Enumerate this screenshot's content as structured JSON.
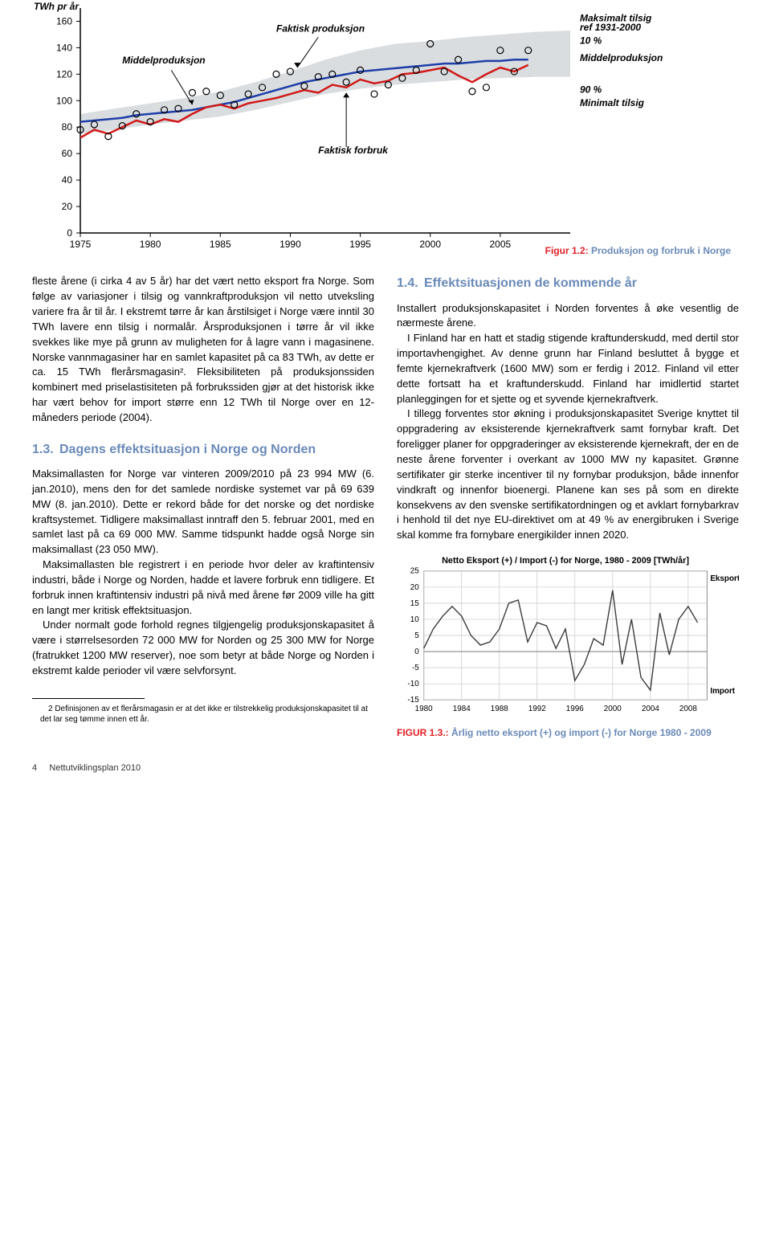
{
  "chart_top": {
    "type": "line",
    "y_axis_title": "TWh pr år",
    "x_ticks": [
      1975,
      1980,
      1985,
      1990,
      1995,
      2000,
      2005
    ],
    "y_ticks": [
      0,
      20,
      40,
      60,
      80,
      100,
      120,
      140,
      160
    ],
    "xlim": [
      1975,
      2010
    ],
    "ylim": [
      0,
      170
    ],
    "background_color": "#ffffff",
    "grid_color": "#000000",
    "band_color": "#d9dde0",
    "band_upper": [
      90,
      94,
      98,
      102,
      107,
      114,
      122,
      131,
      138,
      143,
      145,
      148,
      150,
      152,
      153
    ],
    "band_lower": [
      75,
      78,
      82,
      85,
      88,
      93,
      99,
      105,
      109,
      112,
      114,
      116,
      117,
      118,
      118
    ],
    "band_years": [
      1975,
      1977.5,
      1980,
      1982.5,
      1985,
      1987.5,
      1990,
      1992.5,
      1995,
      1997.5,
      2000,
      2002.5,
      2005,
      2007.5,
      2010
    ],
    "series": [
      {
        "name": "Middelproduksjon",
        "color": "#1f3ea8",
        "width": 2.5,
        "years": [
          1975,
          1976,
          1977,
          1978,
          1979,
          1980,
          1981,
          1982,
          1983,
          1984,
          1985,
          1986,
          1987,
          1988,
          1989,
          1990,
          1991,
          1992,
          1993,
          1994,
          1995,
          1996,
          1997,
          1998,
          1999,
          2000,
          2001,
          2002,
          2003,
          2004,
          2005,
          2006,
          2007
        ],
        "values": [
          84,
          85,
          86,
          87,
          89,
          90,
          91,
          92,
          93,
          95,
          97,
          99,
          102,
          105,
          108,
          111,
          114,
          116,
          118,
          120,
          122,
          123,
          124,
          125,
          126,
          127,
          128,
          128,
          129,
          130,
          130,
          131,
          131
        ]
      },
      {
        "name": "Faktisk forbruk",
        "color": "#d11a1a",
        "width": 2.5,
        "years": [
          1975,
          1976,
          1977,
          1978,
          1979,
          1980,
          1981,
          1982,
          1983,
          1984,
          1985,
          1986,
          1987,
          1988,
          1989,
          1990,
          1991,
          1992,
          1993,
          1994,
          1995,
          1996,
          1997,
          1998,
          1999,
          2000,
          2001,
          2002,
          2003,
          2004,
          2005,
          2006,
          2007
        ],
        "values": [
          72,
          78,
          75,
          80,
          85,
          82,
          86,
          84,
          90,
          95,
          97,
          94,
          98,
          100,
          102,
          105,
          108,
          106,
          112,
          110,
          116,
          113,
          115,
          120,
          121,
          123,
          125,
          119,
          114,
          120,
          125,
          122,
          127
        ]
      },
      {
        "name": "Faktisk produksjon",
        "color": "#000000",
        "width": 0,
        "marker": "circle",
        "marker_size": 4,
        "years": [
          1975,
          1976,
          1977,
          1978,
          1979,
          1980,
          1981,
          1982,
          1983,
          1984,
          1985,
          1986,
          1987,
          1988,
          1989,
          1990,
          1991,
          1992,
          1993,
          1994,
          1995,
          1996,
          1997,
          1998,
          1999,
          2000,
          2001,
          2002,
          2003,
          2004,
          2005,
          2006,
          2007
        ],
        "values": [
          78,
          82,
          73,
          81,
          90,
          84,
          93,
          94,
          106,
          107,
          104,
          97,
          105,
          110,
          120,
          122,
          111,
          118,
          120,
          114,
          123,
          105,
          112,
          117,
          123,
          143,
          122,
          131,
          107,
          110,
          138,
          122,
          138
        ]
      }
    ],
    "annotations": {
      "middelproduksjon_left": "Middelproduksjon",
      "faktisk_produksjon": "Faktisk produksjon",
      "faktisk_forbruk": "Faktisk forbruk",
      "maksimalt_tilsig": "Maksimalt tilsig",
      "ref_period": "ref 1931-2000",
      "pct10": "10 %",
      "middelproduksjon_right": "Middelproduksjon",
      "pct90": "90 %",
      "minimalt_tilsig": "Minimalt tilsig"
    }
  },
  "caption_top": {
    "fig_label": "Figur 1.2:",
    "text": "Produksjon og forbruk i Norge"
  },
  "col_left": {
    "p1": "fleste årene (i cirka 4 av 5 år) har det vært netto eksport fra Norge. Som følge av variasjoner i tilsig og vannkraftproduksjon vil netto utveksling variere fra år til år. I ekstremt tørre år kan årstilsiget i Norge være inntil 30 TWh lavere enn tilsig i normalår. Årsproduksjonen i tørre år vil ikke svekkes like mye på grunn av muligheten for å lagre vann i magasinene. Norske vannmagasiner har en samlet kapasitet på ca 83 TWh, av dette er ca. 15 TWh flerårsmagasin². Fleksibiliteten på produksjonssiden kombinert med priselastisiteten på forbrukssiden gjør at det historisk ikke har vært behov for import større enn 12 TWh til Norge over en 12-måneders periode (2004).",
    "h13_num": "1.3.",
    "h13_title": "Dagens effektsituasjon i Norge og Norden",
    "p2": "Maksimallasten for Norge var vinteren 2009/2010 på 23 994 MW (6. jan.2010), mens den for det samlede nordiske systemet var på 69 639 MW (8. jan.2010). Dette er rekord både for det norske og det nordiske kraftsystemet. Tidligere maksimallast inntraff den 5. februar 2001, med en samlet last på ca 69 000 MW. Samme tidspunkt hadde også Norge sin maksimallast (23 050 MW).",
    "p3": "Maksimallasten ble registrert i en periode hvor deler av kraftintensiv industri, både i Norge og Norden, hadde et lavere forbruk enn tidligere. Et forbruk innen kraftintensiv industri på nivå med årene før 2009 ville ha gitt en langt mer kritisk effektsituasjon.",
    "p4": "Under normalt gode forhold regnes tilgjengelig produksjonskapasitet å være i størrelsesorden 72 000 MW for Norden og 25 300 MW for Norge (fratrukket 1200 MW reserver), noe som betyr at både Norge og Norden i ekstremt kalde perioder vil være selvforsynt.",
    "footnote": "2  Definisjonen av et flerårsmagasin er at det ikke er tilstrekkelig produksjonskapasitet til at det lar seg tømme innen ett år."
  },
  "col_right": {
    "h14_num": "1.4.",
    "h14_title": "Effektsituasjonen de kommende år",
    "p1": "Installert produksjonskapasitet i Norden forventes å øke vesentlig de nærmeste årene.",
    "p2": "I Finland har en hatt et stadig stigende kraftunderskudd, med dertil stor importavhengighet. Av denne grunn har Finland besluttet å bygge et femte kjernekraftverk (1600 MW) som er ferdig i 2012. Finland vil etter dette fortsatt ha et kraftunderskudd. Finland har imidlertid startet planleggingen for et sjette og et syvende kjernekraftverk.",
    "p3": "I tillegg forventes stor økning i produksjonskapasitet Sverige knyttet til oppgradering av eksisterende kjernekraftverk samt fornybar kraft. Det foreligger planer for oppgraderinger av eksisterende kjernekraft, der en de neste årene forventer i overkant av 1000 MW ny kapasitet. Grønne sertifikater gir sterke incentiver til ny fornybar produksjon, både innenfor vindkraft og innenfor bioenergi. Planene kan ses på som en direkte konsekvens av den svenske sertifikatordningen og et avklart fornybarkrav i henhold til det nye EU-direktivet om at 49 % av energibruken i Sverige skal komme fra fornybare energikilder innen 2020."
  },
  "chart_bottom": {
    "type": "line",
    "title": "Netto Eksport (+) / Import (-) for Norge, 1980 - 2009 [TWh/år]",
    "title_fontsize": 11,
    "x_ticks": [
      1980,
      1984,
      1988,
      1992,
      1996,
      2000,
      2004,
      2008
    ],
    "y_ticks": [
      -15,
      -10,
      -5,
      0,
      5,
      10,
      15,
      20,
      25
    ],
    "xlim": [
      1980,
      2010
    ],
    "ylim": [
      -15,
      25
    ],
    "grid_color": "#c8c8c8",
    "line_color": "#3a3a3a",
    "line_width": 1.4,
    "years": [
      1980,
      1981,
      1982,
      1983,
      1984,
      1985,
      1986,
      1987,
      1988,
      1989,
      1990,
      1991,
      1992,
      1993,
      1994,
      1995,
      1996,
      1997,
      1998,
      1999,
      2000,
      2001,
      2002,
      2003,
      2004,
      2005,
      2006,
      2007,
      2008,
      2009
    ],
    "values": [
      1,
      7,
      11,
      14,
      11,
      5,
      2,
      3,
      7,
      15,
      16,
      3,
      9,
      8,
      1,
      7,
      -9,
      -4,
      4,
      2,
      19,
      -4,
      10,
      -8,
      -12,
      12,
      -1,
      10,
      14,
      9
    ],
    "label_eksport": "Eksport",
    "label_import": "Import"
  },
  "caption_bottom": {
    "fig_label": "FIGUR 1.3.:",
    "text": "Årlig netto eksport (+) og import (-) for Norge 1980 - 2009"
  },
  "footer": {
    "page_num": "4",
    "doc_title": "Nettutviklingsplan 2010"
  }
}
